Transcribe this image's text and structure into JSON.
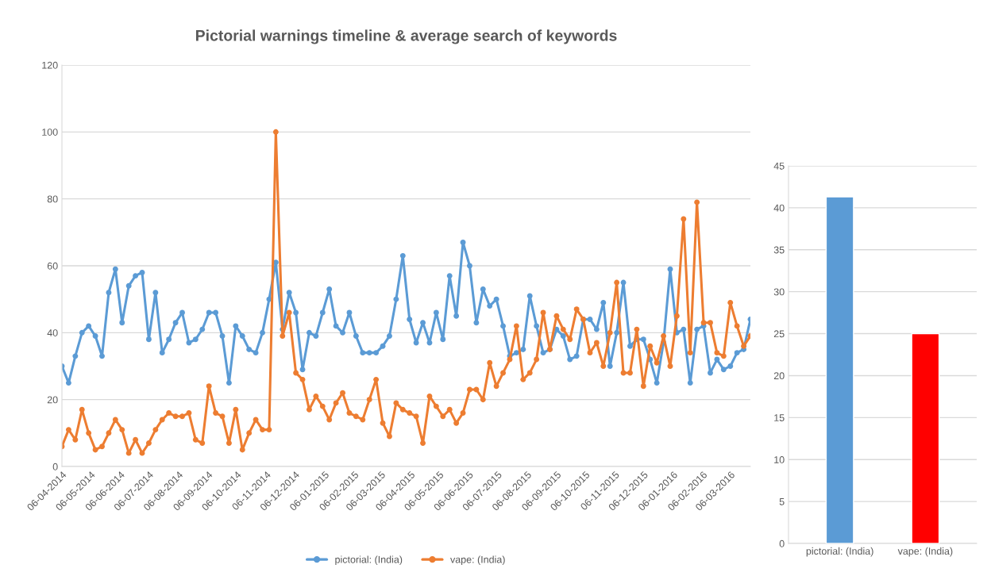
{
  "chart_data": [
    {
      "type": "line",
      "title": "Pictorial warnings timeline & average search of keywords",
      "marker": "circle",
      "grid": "y",
      "legend": "bottom",
      "x": [
        "2014-04-06",
        "2014-04-13",
        "2014-04-20",
        "2014-04-27",
        "2014-05-04",
        "2014-05-11",
        "2014-05-18",
        "2014-05-25",
        "2014-06-01",
        "2014-06-08",
        "2014-06-15",
        "2014-06-22",
        "2014-06-29",
        "2014-07-06",
        "2014-07-13",
        "2014-07-20",
        "2014-07-27",
        "2014-08-03",
        "2014-08-10",
        "2014-08-17",
        "2014-08-24",
        "2014-08-31",
        "2014-09-07",
        "2014-09-14",
        "2014-09-21",
        "2014-09-28",
        "2014-10-05",
        "2014-10-12",
        "2014-10-19",
        "2014-10-26",
        "2014-11-02",
        "2014-11-09",
        "2014-11-16",
        "2014-11-23",
        "2014-11-30",
        "2014-12-07",
        "2014-12-14",
        "2014-12-21",
        "2014-12-28",
        "2015-01-04",
        "2015-01-11",
        "2015-01-18",
        "2015-01-25",
        "2015-02-01",
        "2015-02-08",
        "2015-02-15",
        "2015-02-22",
        "2015-03-01",
        "2015-03-08",
        "2015-03-15",
        "2015-03-22",
        "2015-03-29",
        "2015-04-05",
        "2015-04-12",
        "2015-04-19",
        "2015-04-26",
        "2015-05-03",
        "2015-05-10",
        "2015-05-17",
        "2015-05-24",
        "2015-05-31",
        "2015-06-07",
        "2015-06-14",
        "2015-06-21",
        "2015-06-28",
        "2015-07-05",
        "2015-07-12",
        "2015-07-19",
        "2015-07-26",
        "2015-08-02",
        "2015-08-09",
        "2015-08-16",
        "2015-08-23",
        "2015-08-30",
        "2015-09-06",
        "2015-09-13",
        "2015-09-20",
        "2015-09-27",
        "2015-10-04",
        "2015-10-11",
        "2015-10-18",
        "2015-10-25",
        "2015-11-01",
        "2015-11-08",
        "2015-11-15",
        "2015-11-22",
        "2015-11-29",
        "2015-12-06",
        "2015-12-13",
        "2015-12-20",
        "2015-12-27",
        "2016-01-03",
        "2016-01-10",
        "2016-01-17",
        "2016-01-24",
        "2016-01-31",
        "2016-02-07",
        "2016-02-14",
        "2016-02-21",
        "2016-02-28",
        "2016-03-06",
        "2016-03-13",
        "2016-03-20",
        "2016-03-27"
      ],
      "xlim": [
        "2014-04-06",
        "2016-03-27"
      ],
      "xticks": [
        {
          "value": "2014-04-06",
          "label": "06-04-2014"
        },
        {
          "value": "2014-05-06",
          "label": "06-05-2014"
        },
        {
          "value": "2014-06-06",
          "label": "06-06-2014"
        },
        {
          "value": "2014-07-06",
          "label": "06-07-2014"
        },
        {
          "value": "2014-08-06",
          "label": "06-08-2014"
        },
        {
          "value": "2014-09-06",
          "label": "06-09-2014"
        },
        {
          "value": "2014-10-06",
          "label": "06-10-2014"
        },
        {
          "value": "2014-11-06",
          "label": "06-11-2014"
        },
        {
          "value": "2014-12-06",
          "label": "06-12-2014"
        },
        {
          "value": "2015-01-06",
          "label": "06-01-2015"
        },
        {
          "value": "2015-02-06",
          "label": "06-02-2015"
        },
        {
          "value": "2015-03-06",
          "label": "06-03-2015"
        },
        {
          "value": "2015-04-06",
          "label": "06-04-2015"
        },
        {
          "value": "2015-05-06",
          "label": "06-05-2015"
        },
        {
          "value": "2015-06-06",
          "label": "06-06-2015"
        },
        {
          "value": "2015-07-06",
          "label": "06-07-2015"
        },
        {
          "value": "2015-08-06",
          "label": "06-08-2015"
        },
        {
          "value": "2015-09-06",
          "label": "06-09-2015"
        },
        {
          "value": "2015-10-06",
          "label": "06-10-2015"
        },
        {
          "value": "2015-11-06",
          "label": "06-11-2015"
        },
        {
          "value": "2015-12-06",
          "label": "06-12-2015"
        },
        {
          "value": "2016-01-06",
          "label": "06-01-2016"
        },
        {
          "value": "2016-02-06",
          "label": "06-02-2016"
        },
        {
          "value": "2016-03-06",
          "label": "06-03-2016"
        }
      ],
      "ylim": [
        0,
        120
      ],
      "yticks": [
        0,
        20,
        40,
        60,
        80,
        100,
        120
      ],
      "series": [
        {
          "name": "pictorial: (India)",
          "color": "#5b9bd5",
          "values": [
            30,
            25,
            33,
            40,
            42,
            39,
            33,
            52,
            59,
            43,
            54,
            57,
            58,
            38,
            52,
            34,
            38,
            43,
            46,
            37,
            38,
            41,
            46,
            46,
            39,
            25,
            42,
            39,
            35,
            34,
            40,
            50,
            61,
            41,
            52,
            46,
            29,
            40,
            39,
            46,
            53,
            42,
            40,
            46,
            39,
            34,
            34,
            34,
            36,
            39,
            50,
            63,
            44,
            37,
            43,
            37,
            46,
            38,
            57,
            45,
            67,
            60,
            43,
            53,
            48,
            50,
            42,
            33,
            34,
            35,
            51,
            42,
            34,
            35,
            41,
            39,
            32,
            33,
            44,
            44,
            41,
            49,
            30,
            40,
            55,
            36,
            38,
            38,
            32,
            25,
            37,
            59,
            40,
            41,
            25,
            41,
            42,
            28,
            32,
            29,
            30,
            34,
            35,
            44
          ]
        },
        {
          "name": "vape: (India)",
          "color": "#ed7d31",
          "values": [
            6,
            11,
            8,
            17,
            10,
            5,
            6,
            10,
            14,
            11,
            4,
            8,
            4,
            7,
            11,
            14,
            16,
            15,
            15,
            16,
            8,
            7,
            24,
            16,
            15,
            7,
            17,
            5,
            10,
            14,
            11,
            11,
            100,
            39,
            46,
            28,
            26,
            17,
            21,
            18,
            14,
            19,
            22,
            16,
            15,
            14,
            20,
            26,
            13,
            9,
            19,
            17,
            16,
            15,
            7,
            21,
            18,
            15,
            17,
            13,
            16,
            23,
            23,
            20,
            31,
            24,
            28,
            32,
            42,
            26,
            28,
            32,
            46,
            35,
            45,
            41,
            38,
            47,
            44,
            34,
            37,
            30,
            40,
            55,
            28,
            28,
            41,
            24,
            36,
            31,
            39,
            30,
            45,
            74,
            34,
            79,
            43,
            43,
            34,
            33,
            49,
            42,
            36,
            39
          ]
        }
      ]
    },
    {
      "type": "bar",
      "grid": "y",
      "categories": [
        "pictorial: (India)",
        "vape: (India)"
      ],
      "values": [
        41.3,
        25
      ],
      "colors": [
        "#5b9bd5",
        "#ff0000"
      ],
      "ylim": [
        0,
        45
      ],
      "yticks": [
        0,
        5,
        10,
        15,
        20,
        25,
        30,
        35,
        40,
        45
      ]
    }
  ]
}
